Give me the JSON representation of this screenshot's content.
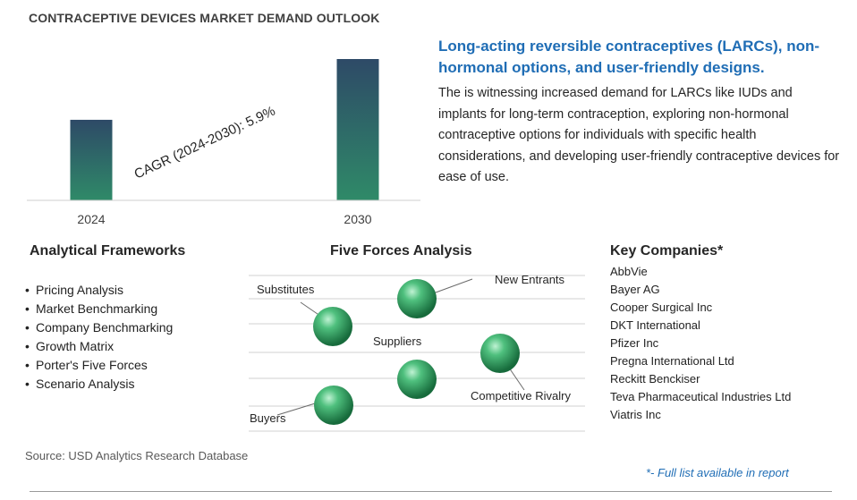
{
  "header": {
    "title": "CONTRACEPTIVE DEVICES MARKET DEMAND OUTLOOK"
  },
  "chart_data": {
    "type": "bar",
    "categories": [
      "2024",
      "2030"
    ],
    "values": [
      0.57,
      1.0
    ],
    "annotation": "CAGR (2024-2030):   5.9%",
    "colors": {
      "bar_top": "#2e4a67",
      "bar_bottom": "#2f8a68"
    }
  },
  "summary": {
    "headline": "Long-acting reversible contraceptives (LARCs), non-hormonal options, and user-friendly designs.",
    "description": "The is witnessing increased demand for LARCs like IUDs and implants for long-term contraception, exploring non-hormonal contraceptive options for individuals with specific health considerations, and developing user-friendly contraceptive devices for ease of use."
  },
  "frameworks": {
    "title": "Analytical Frameworks",
    "items": [
      "Pricing Analysis",
      "Market Benchmarking",
      "Company Benchmarking",
      "Growth Matrix",
      "Porter's Five Forces",
      "Scenario Analysis"
    ]
  },
  "forces": {
    "title": "Five Forces Analysis",
    "labels": {
      "new_entrants": "New Entrants",
      "substitutes": "Substitutes",
      "suppliers": "Suppliers",
      "rivalry": "Competitive Rivalry",
      "buyers": "Buyers"
    }
  },
  "companies": {
    "title": "Key Companies*",
    "items": [
      "AbbVie",
      "Bayer AG",
      "Cooper Surgical Inc",
      "DKT International",
      "Pfizer Inc",
      "Pregna International Ltd",
      "Reckitt Benckiser",
      "Teva Pharmaceutical Industries Ltd",
      "Viatris Inc"
    ]
  },
  "footer": {
    "source": "Source: USD Analytics Research Database",
    "note": "*- Full list available in report"
  }
}
